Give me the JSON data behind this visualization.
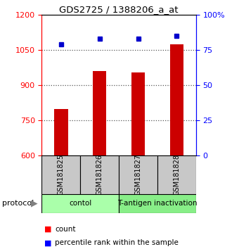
{
  "title": "GDS2725 / 1388206_a_at",
  "samples": [
    "GSM181825",
    "GSM181826",
    "GSM181827",
    "GSM181828"
  ],
  "counts": [
    800,
    960,
    955,
    1075
  ],
  "percentile_ranks": [
    79,
    83,
    83,
    85
  ],
  "ylim_left": [
    600,
    1200
  ],
  "ylim_right": [
    0,
    100
  ],
  "left_ticks": [
    600,
    750,
    900,
    1050,
    1200
  ],
  "right_ticks": [
    0,
    25,
    50,
    75,
    100
  ],
  "bar_color": "#cc0000",
  "dot_color": "#0000cc",
  "grid_color": "#555555",
  "sample_box_color": "#c8c8c8",
  "protocol_groups": [
    {
      "label": "contol",
      "samples": [
        0,
        1
      ],
      "color": "#aaffaa"
    },
    {
      "label": "T-antigen inactivation",
      "samples": [
        2,
        3
      ],
      "color": "#88ee88"
    }
  ],
  "protocol_label": "protocol",
  "legend_count_label": "count",
  "legend_percentile_label": "percentile rank within the sample",
  "bar_width": 0.35
}
